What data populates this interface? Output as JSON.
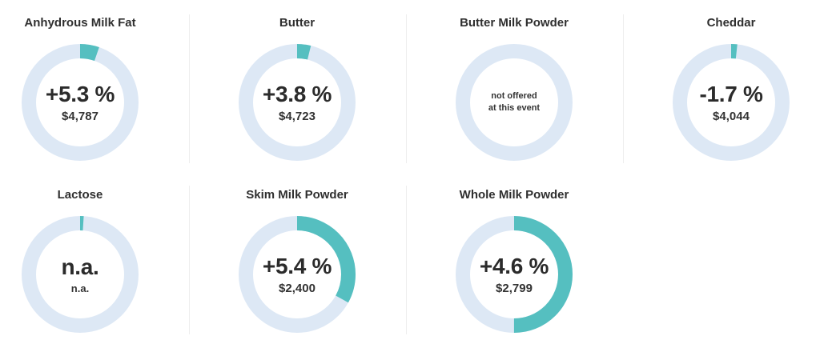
{
  "colors": {
    "track": "#dde8f5",
    "fill": "#55bfc0",
    "text": "#2b2b2b"
  },
  "chart_data": {
    "type": "pie",
    "subtype": "donut-gauges",
    "items": [
      {
        "name": "Anhydrous Milk Fat",
        "change_label": "+5.3 %",
        "change": 5.3,
        "price_label": "$4,787",
        "price": 4787,
        "gauge_fraction": 0.053,
        "offered": true
      },
      {
        "name": "Butter",
        "change_label": "+3.8 %",
        "change": 3.8,
        "price_label": "$4,723",
        "price": 4723,
        "gauge_fraction": 0.038,
        "offered": true
      },
      {
        "name": "Butter Milk Powder",
        "change_label": "",
        "change": null,
        "price_label": "",
        "price": null,
        "gauge_fraction": 0,
        "offered": false,
        "note_line1": "not offered",
        "note_line2": "at this event"
      },
      {
        "name": "Cheddar",
        "change_label": "-1.7 %",
        "change": -1.7,
        "price_label": "$4,044",
        "price": 4044,
        "gauge_fraction": 0.017,
        "offered": true
      },
      {
        "name": "Lactose",
        "change_label": "n.a.",
        "change": null,
        "price_label": "n.a.",
        "price": null,
        "gauge_fraction": 0.01,
        "offered": true
      },
      {
        "name": "Skim Milk Powder",
        "change_label": "+5.4 %",
        "change": 5.4,
        "price_label": "$2,400",
        "price": 2400,
        "gauge_fraction": 0.33,
        "offered": true
      },
      {
        "name": "Whole Milk Powder",
        "change_label": "+4.6 %",
        "change": 4.6,
        "price_label": "$2,799",
        "price": 2799,
        "gauge_fraction": 0.5,
        "offered": true
      }
    ]
  }
}
